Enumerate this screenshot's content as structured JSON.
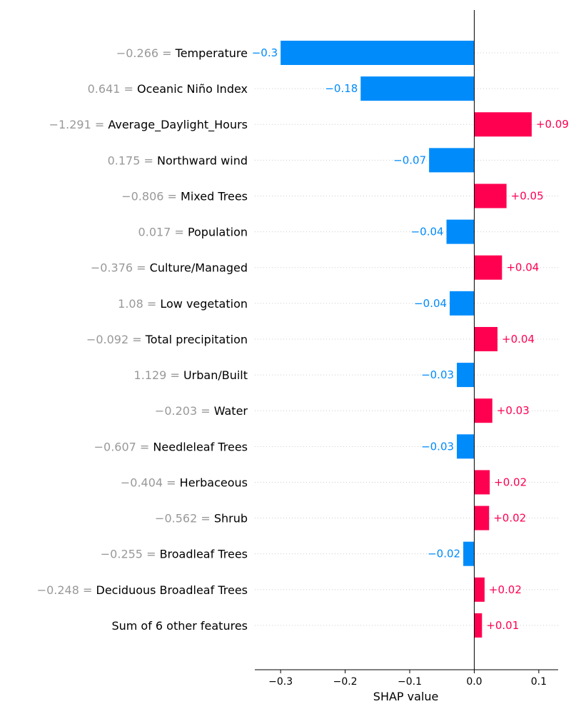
{
  "chart_data": {
    "type": "bar",
    "orientation": "horizontal",
    "xlabel": "SHAP value",
    "xlim": [
      -0.34,
      0.13
    ],
    "xticks": [
      -0.3,
      -0.2,
      -0.1,
      0.0,
      0.1
    ],
    "xtick_labels": [
      "−0.3",
      "−0.2",
      "−0.1",
      "0.0",
      "0.1"
    ],
    "grid": "dotted horizontal lines at each feature row",
    "colors": {
      "positive": "#ff0051",
      "negative": "#008bfb",
      "feature_value": "#999999"
    },
    "rows": [
      {
        "feature": "Temperature",
        "value_label": "−0.266",
        "shap": -0.3,
        "label": "−0.3"
      },
      {
        "feature": "Oceanic Niño Index",
        "value_label": "0.641",
        "shap": -0.176,
        "label": "−0.18"
      },
      {
        "feature": "Average_Daylight_Hours",
        "value_label": "−1.291",
        "shap": 0.089,
        "label": "+0.09"
      },
      {
        "feature": "Northward wind",
        "value_label": "0.175",
        "shap": -0.07,
        "label": "−0.07"
      },
      {
        "feature": "Mixed Trees",
        "value_label": "−0.806",
        "shap": 0.05,
        "label": "+0.05"
      },
      {
        "feature": "Population",
        "value_label": "0.017",
        "shap": -0.043,
        "label": "−0.04"
      },
      {
        "feature": "Culture/Managed",
        "value_label": "−0.376",
        "shap": 0.043,
        "label": "+0.04"
      },
      {
        "feature": "Low vegetation",
        "value_label": "1.08",
        "shap": -0.038,
        "label": "−0.04"
      },
      {
        "feature": "Total precipitation",
        "value_label": "−0.092",
        "shap": 0.036,
        "label": "+0.04"
      },
      {
        "feature": "Urban/Built",
        "value_label": "1.129",
        "shap": -0.027,
        "label": "−0.03"
      },
      {
        "feature": "Water",
        "value_label": "−0.203",
        "shap": 0.028,
        "label": "+0.03"
      },
      {
        "feature": "Needleleaf Trees",
        "value_label": "−0.607",
        "shap": -0.027,
        "label": "−0.03"
      },
      {
        "feature": "Herbaceous",
        "value_label": "−0.404",
        "shap": 0.024,
        "label": "+0.02"
      },
      {
        "feature": "Shrub",
        "value_label": "−0.562",
        "shap": 0.023,
        "label": "+0.02"
      },
      {
        "feature": "Broadleaf Trees",
        "value_label": "−0.255",
        "shap": -0.017,
        "label": "−0.02"
      },
      {
        "feature": "Deciduous Broadleaf Trees",
        "value_label": "−0.248",
        "shap": 0.016,
        "label": "+0.02"
      },
      {
        "feature": "Sum of 6 other features",
        "value_label": "",
        "shap": 0.012,
        "label": "+0.01"
      }
    ]
  }
}
